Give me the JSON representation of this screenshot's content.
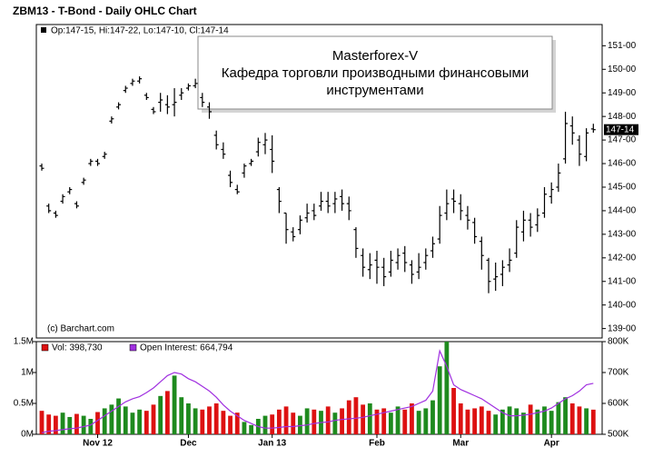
{
  "chart_data": {
    "type": "ohlc",
    "title": "ZBM13 - T-Bond - Daily OHLC Chart",
    "ohlc_text": "Op:147-15, Hi:147-22, Lo:147-10, Cl:147-14",
    "watermark": "(c) Barchart.com",
    "annotation": [
      "Masterforex-V",
      "Кафедра торговли производными финансовыми",
      "инструментами"
    ],
    "categories": [
      null,
      null,
      null,
      null,
      null,
      null,
      null,
      null,
      "Nov 12",
      null,
      null,
      null,
      null,
      null,
      null,
      null,
      null,
      null,
      null,
      null,
      null,
      "Dec",
      null,
      null,
      null,
      null,
      null,
      null,
      null,
      null,
      null,
      null,
      null,
      "Jan 13",
      null,
      null,
      null,
      null,
      null,
      null,
      null,
      null,
      null,
      null,
      null,
      null,
      null,
      null,
      "Feb",
      null,
      null,
      null,
      null,
      null,
      null,
      null,
      null,
      null,
      null,
      null,
      "Mar",
      null,
      null,
      null,
      null,
      null,
      null,
      null,
      null,
      null,
      null,
      null,
      null,
      "Apr",
      null,
      null,
      null,
      null,
      null,
      null
    ],
    "open": [
      145.9,
      144.2,
      143.9,
      144.4,
      144.8,
      144.3,
      145.2,
      146.0,
      146.1,
      146.3,
      147.8,
      148.4,
      149.1,
      149.4,
      149.5,
      148.9,
      148.3,
      148.6,
      148.5,
      148.5,
      148.9,
      149.2,
      149.3,
      148.8,
      148.4,
      147.2,
      146.6,
      145.5,
      144.9,
      145.6,
      146.0,
      146.5,
      146.8,
      146.6,
      144.9,
      143.9,
      143.1,
      143.2,
      143.7,
      144.0,
      144.2,
      144.4,
      144.3,
      144.6,
      144.3,
      143.2,
      142.1,
      141.5,
      141.9,
      141.6,
      141.4,
      141.8,
      142.2,
      141.7,
      141.4,
      141.8,
      142.3,
      142.8,
      143.9,
      144.5,
      144.3,
      143.8,
      143.5,
      142.7,
      141.9,
      141.1,
      141.3,
      141.7,
      142.2,
      143.1,
      143.6,
      143.4,
      143.9,
      144.6,
      145.0,
      146.2,
      147.6,
      147.0,
      146.3,
      147.47
    ],
    "high": [
      146.0,
      144.3,
      144.0,
      144.7,
      145.0,
      144.4,
      145.4,
      146.2,
      146.2,
      146.5,
      148.0,
      148.6,
      149.3,
      149.6,
      149.7,
      149.0,
      148.4,
      149.0,
      148.9,
      149.2,
      149.2,
      149.4,
      149.6,
      149.0,
      148.6,
      147.4,
      146.9,
      145.7,
      145.1,
      146.0,
      146.2,
      147.1,
      147.3,
      147.2,
      145.0,
      143.9,
      143.3,
      143.8,
      144.3,
      144.3,
      144.8,
      144.8,
      144.8,
      144.9,
      144.6,
      143.3,
      142.4,
      142.2,
      142.3,
      142.0,
      142.3,
      142.4,
      142.5,
      141.9,
      142.2,
      142.4,
      142.9,
      144.2,
      144.9,
      144.9,
      144.7,
      144.2,
      143.7,
      142.9,
      142.0,
      141.8,
      141.9,
      142.4,
      143.6,
      144.0,
      143.9,
      144.1,
      145.0,
      145.2,
      146.0,
      148.2,
      148.0,
      147.2,
      147.5,
      147.69
    ],
    "low": [
      145.7,
      143.9,
      143.7,
      144.3,
      144.7,
      144.1,
      145.1,
      145.9,
      145.9,
      146.2,
      147.7,
      148.3,
      149.0,
      149.3,
      149.4,
      148.7,
      148.1,
      148.2,
      148.1,
      148.0,
      148.7,
      149.1,
      149.2,
      148.4,
      147.9,
      146.6,
      146.2,
      145.0,
      144.7,
      145.4,
      145.9,
      146.3,
      146.4,
      145.6,
      143.9,
      142.6,
      142.7,
      143.0,
      143.5,
      143.6,
      144.0,
      143.9,
      143.9,
      144.0,
      143.6,
      142.0,
      141.2,
      141.1,
      140.9,
      140.8,
      141.2,
      141.5,
      141.4,
      140.9,
      141.1,
      141.5,
      142.0,
      142.6,
      143.6,
      143.9,
      143.6,
      143.2,
      142.6,
      141.5,
      140.5,
      140.6,
      140.8,
      141.4,
      142.0,
      142.7,
      142.9,
      143.1,
      143.7,
      144.3,
      144.8,
      146.0,
      146.8,
      145.9,
      146.1,
      147.31
    ],
    "close": [
      145.8,
      144.0,
      143.8,
      144.6,
      144.9,
      144.2,
      145.3,
      146.1,
      146.0,
      146.4,
      147.9,
      148.5,
      149.2,
      149.5,
      149.6,
      148.8,
      148.2,
      148.7,
      148.4,
      148.6,
      149.0,
      149.3,
      149.4,
      148.6,
      148.2,
      146.8,
      146.4,
      145.2,
      144.8,
      145.9,
      146.1,
      146.9,
      147.0,
      146.1,
      144.4,
      143.2,
      142.9,
      143.6,
      143.9,
      143.8,
      144.4,
      144.2,
      144.5,
      144.3,
      144.0,
      142.4,
      141.6,
      141.7,
      141.6,
      141.2,
      141.9,
      142.1,
      141.8,
      141.3,
      141.6,
      142.1,
      142.6,
      143.8,
      144.3,
      144.4,
      144.0,
      143.6,
      142.9,
      142.1,
      141.0,
      141.2,
      141.6,
      141.9,
      143.3,
      143.6,
      143.3,
      143.8,
      144.7,
      144.9,
      145.6,
      147.7,
      147.3,
      146.4,
      147.3,
      147.44
    ],
    "color": "#000000",
    "ylim": [
      138.6,
      151.9
    ],
    "yticks": [
      {
        "value": 139,
        "label": "139-00"
      },
      {
        "value": 140,
        "label": "140-00"
      },
      {
        "value": 141,
        "label": "141-00"
      },
      {
        "value": 142,
        "label": "142-00"
      },
      {
        "value": 143,
        "label": "143-00"
      },
      {
        "value": 144,
        "label": "144-00"
      },
      {
        "value": 145,
        "label": "145-00"
      },
      {
        "value": 146,
        "label": "146-00"
      },
      {
        "value": 147,
        "label": "147-00"
      },
      {
        "value": 148,
        "label": "148-00"
      },
      {
        "value": 149,
        "label": "149-00"
      },
      {
        "value": 150,
        "label": "150-00"
      },
      {
        "value": 151,
        "label": "151-00"
      }
    ],
    "last": {
      "value": 147.44,
      "label": "147-14"
    },
    "volume": {
      "type": "bar",
      "name": "Vol: 398,730",
      "color": "#dd1111",
      "up_color": "#1e8a1e",
      "down_color": "#dd1111",
      "values": [
        0.38,
        0.32,
        0.3,
        0.35,
        0.28,
        0.33,
        0.3,
        0.25,
        0.36,
        0.42,
        0.48,
        0.58,
        0.45,
        0.35,
        0.4,
        0.38,
        0.48,
        0.62,
        0.7,
        0.95,
        0.6,
        0.5,
        0.42,
        0.4,
        0.45,
        0.5,
        0.38,
        0.3,
        0.35,
        0.2,
        0.15,
        0.25,
        0.3,
        0.32,
        0.4,
        0.45,
        0.35,
        0.3,
        0.42,
        0.4,
        0.38,
        0.45,
        0.35,
        0.42,
        0.55,
        0.6,
        0.48,
        0.5,
        0.4,
        0.42,
        0.35,
        0.45,
        0.4,
        0.5,
        0.38,
        0.42,
        0.55,
        1.1,
        1.5,
        0.75,
        0.5,
        0.4,
        0.42,
        0.45,
        0.38,
        0.32,
        0.4,
        0.45,
        0.42,
        0.35,
        0.48,
        0.4,
        0.45,
        0.38,
        0.52,
        0.6,
        0.5,
        0.45,
        0.42,
        0.39873
      ],
      "ylim": [
        0,
        1.5
      ],
      "yticks": [
        {
          "value": 0,
          "label": "0M"
        },
        {
          "value": 0.5,
          "label": "0.5M"
        },
        {
          "value": 1,
          "label": "1M"
        },
        {
          "value": 1.5,
          "label": "1.5M"
        }
      ]
    },
    "open_interest": {
      "type": "line",
      "name": "Open Interest: 664,794",
      "color": "#a030e0",
      "values": [
        505,
        510,
        512,
        515,
        518,
        520,
        525,
        530,
        545,
        560,
        575,
        590,
        605,
        615,
        622,
        635,
        650,
        670,
        690,
        700,
        695,
        680,
        670,
        655,
        640,
        620,
        595,
        575,
        560,
        545,
        535,
        525,
        520,
        520,
        522,
        525,
        525,
        528,
        530,
        535,
        538,
        540,
        545,
        548,
        550,
        552,
        555,
        560,
        565,
        570,
        575,
        580,
        585,
        590,
        600,
        610,
        640,
        770,
        720,
        660,
        645,
        635,
        625,
        615,
        600,
        585,
        570,
        560,
        560,
        562,
        565,
        570,
        575,
        585,
        600,
        615,
        625,
        640,
        660,
        664.794
      ],
      "y2lim": [
        500,
        800
      ],
      "y2ticks": [
        {
          "value": 500,
          "label": "500K"
        },
        {
          "value": 600,
          "label": "600K"
        },
        {
          "value": 700,
          "label": "700K"
        },
        {
          "value": 800,
          "label": "800K"
        }
      ]
    }
  }
}
